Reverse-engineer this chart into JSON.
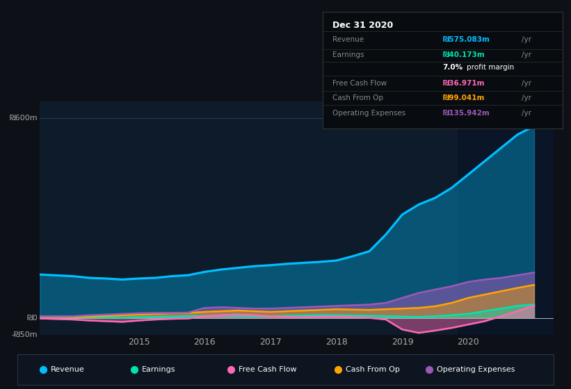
{
  "bg_color": "#0d1117",
  "plot_bg_color": "#0d1b2a",
  "grid_color": "#1e3a5f",
  "title_box_title": "Dec 31 2020",
  "years": [
    2013.5,
    2014.0,
    2014.25,
    2014.5,
    2014.75,
    2015.0,
    2015.25,
    2015.5,
    2015.75,
    2016.0,
    2016.25,
    2016.5,
    2016.75,
    2017.0,
    2017.25,
    2017.5,
    2017.75,
    2018.0,
    2018.25,
    2018.5,
    2018.75,
    2019.0,
    2019.25,
    2019.5,
    2019.75,
    2020.0,
    2020.25,
    2020.5,
    2020.75,
    2021.0
  ],
  "revenue": [
    130,
    125,
    120,
    118,
    115,
    118,
    120,
    125,
    128,
    138,
    145,
    150,
    155,
    158,
    162,
    165,
    168,
    172,
    185,
    200,
    250,
    310,
    340,
    360,
    390,
    430,
    470,
    510,
    550,
    575
  ],
  "earnings": [
    5,
    3,
    2,
    1,
    0,
    2,
    3,
    4,
    5,
    6,
    7,
    6,
    5,
    5,
    6,
    7,
    8,
    8,
    7,
    6,
    5,
    4,
    3,
    5,
    8,
    12,
    20,
    28,
    36,
    40
  ],
  "free_cash_flow": [
    -2,
    -5,
    -8,
    -10,
    -12,
    -8,
    -5,
    -3,
    -2,
    5,
    8,
    10,
    8,
    5,
    3,
    2,
    3,
    4,
    2,
    0,
    -5,
    -35,
    -45,
    -38,
    -30,
    -20,
    -10,
    5,
    20,
    37
  ],
  "cash_from_op": [
    5,
    3,
    4,
    6,
    8,
    10,
    12,
    14,
    15,
    18,
    20,
    22,
    20,
    18,
    20,
    22,
    24,
    26,
    25,
    24,
    26,
    28,
    30,
    35,
    45,
    60,
    70,
    80,
    90,
    99
  ],
  "op_expenses": [
    5,
    5,
    8,
    10,
    12,
    14,
    15,
    15,
    16,
    30,
    32,
    30,
    28,
    28,
    30,
    32,
    34,
    36,
    38,
    40,
    45,
    60,
    75,
    85,
    95,
    108,
    115,
    120,
    128,
    136
  ],
  "revenue_color": "#00bfff",
  "earnings_color": "#00e5b0",
  "fcf_color": "#ff69b4",
  "cashop_color": "#ffa500",
  "opex_color": "#9b59b6",
  "ylim": [
    -50,
    650
  ],
  "xlim": [
    2013.5,
    2021.3
  ],
  "xticks": [
    2015,
    2016,
    2017,
    2018,
    2019,
    2020
  ],
  "ylabel_600": "₪600m",
  "ylabel_0": "₪0",
  "ylabel_neg50": "-₪50m",
  "legend_items": [
    {
      "label": "Revenue",
      "color": "#00bfff"
    },
    {
      "label": "Earnings",
      "color": "#00e5b0"
    },
    {
      "label": "Free Cash Flow",
      "color": "#ff69b4"
    },
    {
      "label": "Cash From Op",
      "color": "#ffa500"
    },
    {
      "label": "Operating Expenses",
      "color": "#9b59b6"
    }
  ],
  "info_rows": [
    {
      "label": "Revenue",
      "value": "₪575.083m",
      "suffix": " /yr",
      "color": "#00bfff",
      "is_margin": false
    },
    {
      "label": "Earnings",
      "value": "₪40.173m",
      "suffix": " /yr",
      "color": "#00e5b0",
      "is_margin": false
    },
    {
      "label": "",
      "value": "7.0%",
      "suffix": " profit margin",
      "color": "#ffffff",
      "is_margin": true
    },
    {
      "label": "Free Cash Flow",
      "value": "₪36.971m",
      "suffix": " /yr",
      "color": "#ff69b4",
      "is_margin": false
    },
    {
      "label": "Cash From Op",
      "value": "₪99.041m",
      "suffix": " /yr",
      "color": "#ffa500",
      "is_margin": false
    },
    {
      "label": "Operating Expenses",
      "value": "₪135.942m",
      "suffix": " /yr",
      "color": "#9b59b6",
      "is_margin": false
    }
  ]
}
